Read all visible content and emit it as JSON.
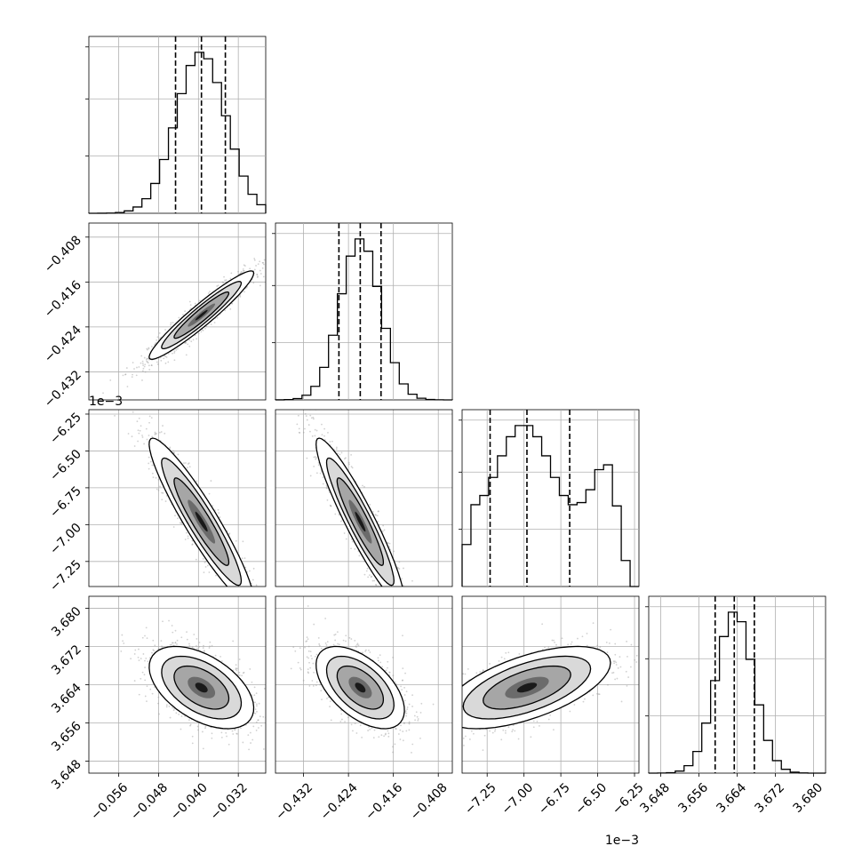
{
  "chart_data": {
    "type": "corner",
    "grid": true,
    "parameters": [
      {
        "range": [
          -0.062,
          -0.0265
        ],
        "ticks": [
          -0.056,
          -0.048,
          -0.04,
          -0.032
        ],
        "tick_labels": [
          "−0.056",
          "−0.048",
          "−0.040",
          "−0.032"
        ],
        "offset_label": "",
        "quantiles": [
          -0.0446,
          -0.0394,
          -0.0346
        ],
        "hist_mode": -0.0395,
        "hist_sd": 0.005
      },
      {
        "range": [
          -0.437,
          -0.4055
        ],
        "ticks": [
          -0.432,
          -0.424,
          -0.416,
          -0.408
        ],
        "tick_labels": [
          "−0.432",
          "−0.424",
          "−0.416",
          "−0.408"
        ],
        "offset_label": "",
        "quantiles": [
          -0.4257,
          -0.4219,
          -0.4182
        ],
        "hist_mode": -0.4219,
        "hist_sd": 0.0036
      },
      {
        "range": [
          -7.42,
          -6.22
        ],
        "ticks": [
          -7.25,
          -7.0,
          -6.75,
          -6.5,
          -6.25
        ],
        "tick_labels": [
          "−7.25",
          "−7.00",
          "−6.75",
          "−6.50",
          "−6.25"
        ],
        "offset_label": "1e−3",
        "quantiles": [
          -7.23,
          -6.98,
          -6.69
        ],
        "hist_mode": -7.0,
        "hist_sd": 0.26
      },
      {
        "range": [
          3.6455,
          3.6825
        ],
        "ticks": [
          3.648,
          3.656,
          3.664,
          3.672,
          3.68
        ],
        "tick_labels": [
          "3.648",
          "3.656",
          "3.664",
          "3.672",
          "3.680"
        ],
        "offset_label": "",
        "quantiles": [
          3.6594,
          3.6634,
          3.6676
        ],
        "hist_mode": 3.6635,
        "hist_sd": 0.0039
      }
    ]
  }
}
